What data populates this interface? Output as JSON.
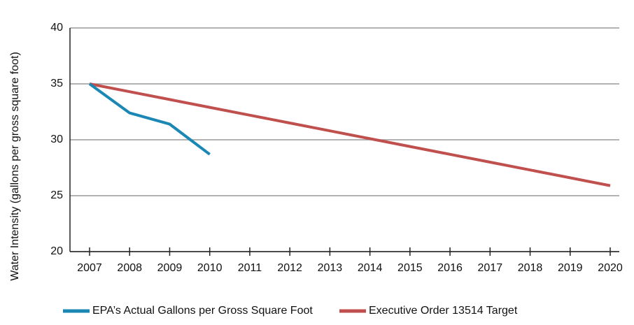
{
  "chart_data": {
    "type": "line",
    "y_label": "Water Intensity (gallons per gross square foot)",
    "categories": [
      "2007",
      "2008",
      "2009",
      "2010",
      "2011",
      "2012",
      "2013",
      "2014",
      "2015",
      "2016",
      "2017",
      "2018",
      "2019",
      "2020"
    ],
    "series": [
      {
        "name": "EPA’s Actual Gallons per Gross Square Foot",
        "color": "#1b87b5",
        "values": [
          35,
          32.4,
          31.4,
          28.7,
          null,
          null,
          null,
          null,
          null,
          null,
          null,
          null,
          null,
          null
        ]
      },
      {
        "name": "Executive Order 13514 Target",
        "color": "#c0504d",
        "values": [
          35,
          34.3,
          33.6,
          32.9,
          32.2,
          31.5,
          30.8,
          30.1,
          29.4,
          28.7,
          28,
          27.3,
          26.6,
          25.9
        ]
      }
    ],
    "ylim": [
      20,
      40
    ],
    "yticks": [
      20,
      25,
      30,
      35,
      40
    ],
    "grid": true,
    "legend": "bottom"
  }
}
